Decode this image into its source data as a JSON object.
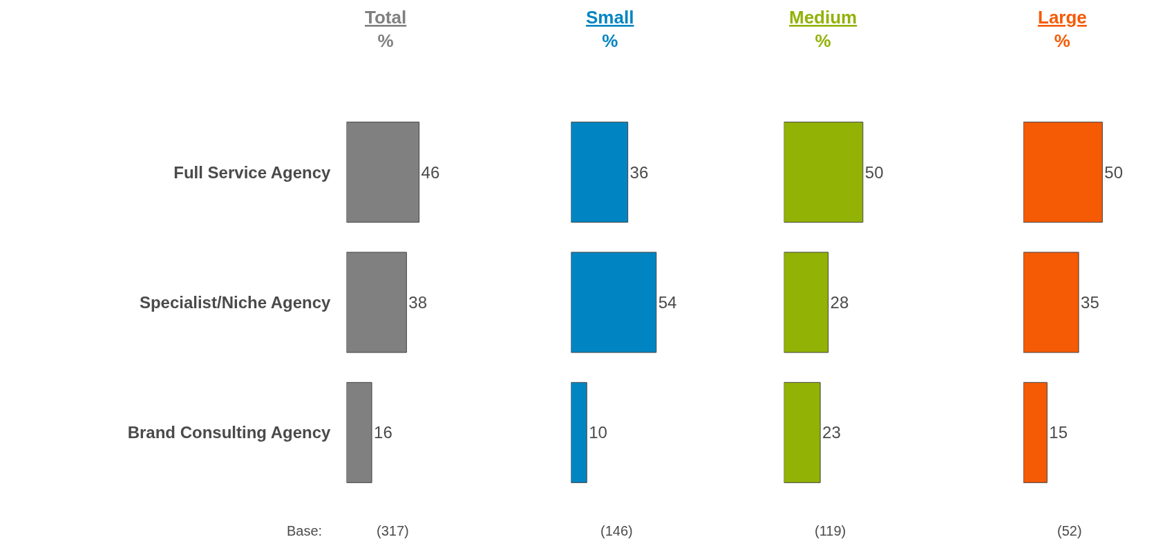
{
  "chart_data": [
    {
      "type": "bar",
      "orientation": "horizontal",
      "title": "Total\n%",
      "categories": [
        "Full Service Agency",
        "Specialist/Niche Agency",
        "Brand Consulting Agency"
      ],
      "values": [
        46,
        38,
        16
      ],
      "color": "#808080",
      "data_labels": true,
      "tick_labels": "y",
      "annotations": [
        "Base:",
        "(317)"
      ]
    },
    {
      "type": "bar",
      "orientation": "horizontal",
      "title": "Small\n%",
      "categories": [
        "Full Service Agency",
        "Specialist/Niche Agency",
        "Brand Consulting Agency"
      ],
      "values": [
        36,
        54,
        10
      ],
      "color": "#0085c2",
      "data_labels": true,
      "tick_labels": false,
      "annotations": [
        "(146)"
      ]
    },
    {
      "type": "bar",
      "orientation": "horizontal",
      "title": "Medium\n%",
      "categories": [
        "Full Service Agency",
        "Specialist/Niche Agency",
        "Brand Consulting Agency"
      ],
      "values": [
        50,
        28,
        23
      ],
      "color": "#92b206",
      "data_labels": true,
      "tick_labels": false,
      "annotations": [
        "(119)"
      ]
    },
    {
      "type": "bar",
      "orientation": "horizontal",
      "title": "Large\n%",
      "categories": [
        "Full Service Agency",
        "Specialist/Niche Agency",
        "Brand Consulting Agency"
      ],
      "values": [
        50,
        35,
        15
      ],
      "color": "#f55a05",
      "data_labels": true,
      "tick_labels": false,
      "annotations": [
        "(52)"
      ]
    }
  ]
}
